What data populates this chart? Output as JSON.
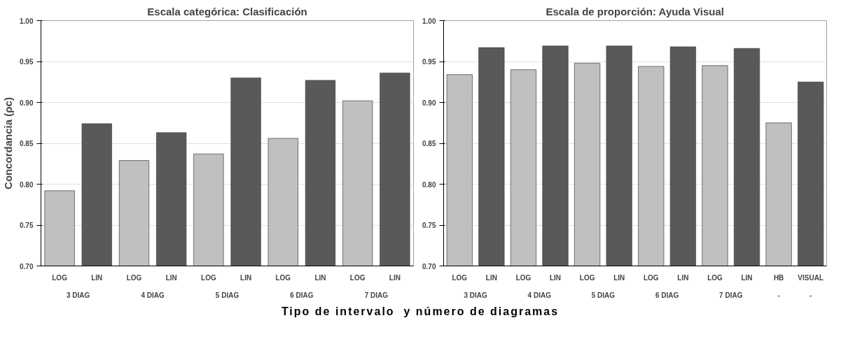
{
  "chart_data": [
    {
      "type": "bar",
      "title": "Escala categórica: Clasificación",
      "ylabel": "Concordancia (ρc)",
      "xlabel": "Tipo de intervalo  y número de diagramas",
      "categories": [
        "LOG",
        "LIN",
        "LOG",
        "LIN",
        "LOG",
        "LIN",
        "LOG",
        "LIN",
        "LOG",
        "LIN"
      ],
      "values": [
        0.792,
        0.874,
        0.829,
        0.863,
        0.837,
        0.93,
        0.856,
        0.927,
        0.902,
        0.936
      ],
      "colors": [
        "#c0c0c0",
        "#595959",
        "#c0c0c0",
        "#595959",
        "#c0c0c0",
        "#595959",
        "#c0c0c0",
        "#595959",
        "#c0c0c0",
        "#595959"
      ],
      "annotations": [
        "3 DIAG",
        "4 DIAG",
        "5 DIAG",
        "6 DIAG",
        "7 DIAG"
      ],
      "ylim": [
        0.7,
        1.0
      ],
      "yticks": [
        {
          "value": 0.7,
          "label": "0.70"
        },
        {
          "value": 0.75,
          "label": "0.75"
        },
        {
          "value": 0.8,
          "label": "0.80"
        },
        {
          "value": 0.85,
          "label": "0.85"
        },
        {
          "value": 0.9,
          "label": "0.90"
        },
        {
          "value": 0.95,
          "label": "0.95"
        },
        {
          "value": 1.0,
          "label": "1.00"
        }
      ],
      "grid": "y"
    },
    {
      "type": "bar",
      "title": "Escala de proporción: Ayuda Visual",
      "categories": [
        "LOG",
        "LIN",
        "LOG",
        "LIN",
        "LOG",
        "LIN",
        "LOG",
        "LIN",
        "LOG",
        "LIN",
        "HB",
        "VISUAL"
      ],
      "values": [
        0.934,
        0.967,
        0.94,
        0.969,
        0.948,
        0.969,
        0.944,
        0.968,
        0.945,
        0.966,
        0.875,
        0.925
      ],
      "colors": [
        "#c0c0c0",
        "#595959",
        "#c0c0c0",
        "#595959",
        "#c0c0c0",
        "#595959",
        "#c0c0c0",
        "#595959",
        "#c0c0c0",
        "#595959",
        "#c0c0c0",
        "#595959"
      ],
      "annotations": [
        "3 DIAG",
        "4 DIAG",
        "5 DIAG",
        "6 DIAG",
        "7 DIAG",
        "-",
        "-"
      ],
      "ylim": [
        0.7,
        1.0
      ],
      "yticks": [
        {
          "value": 0.7,
          "label": "0.70"
        },
        {
          "value": 0.75,
          "label": "0.75"
        },
        {
          "value": 0.8,
          "label": "0.80"
        },
        {
          "value": 0.85,
          "label": "0.85"
        },
        {
          "value": 0.9,
          "label": "0.90"
        },
        {
          "value": 0.95,
          "label": "0.95"
        },
        {
          "value": 1.0,
          "label": "1.00"
        }
      ],
      "grid": "y"
    }
  ]
}
